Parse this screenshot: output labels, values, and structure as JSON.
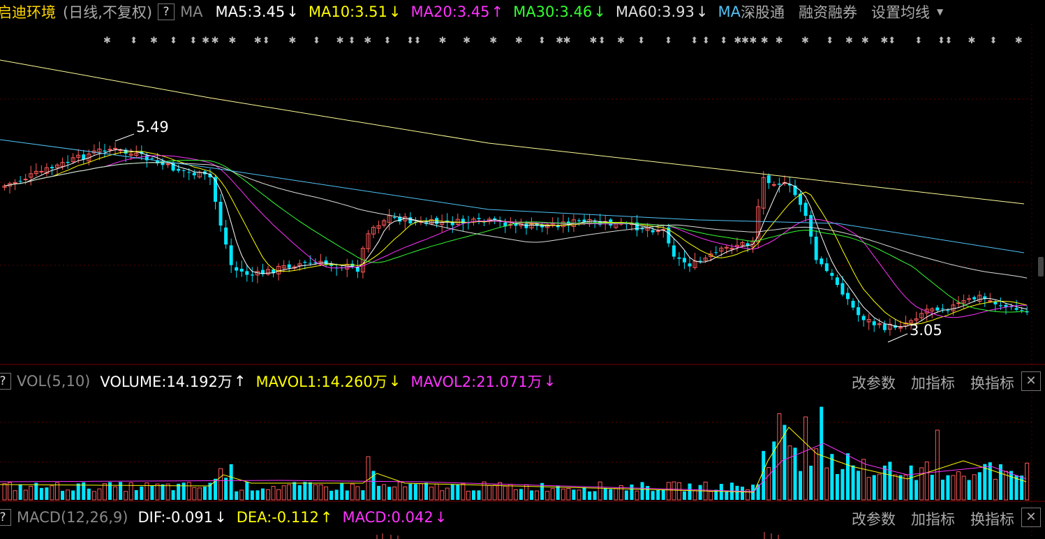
{
  "header": {
    "stock_name": "启迪环境",
    "mode": "(日线,不复权)",
    "help": "?",
    "ma_label": "MA",
    "ma_items": [
      {
        "text": "MA5:3.45",
        "arrow": "↓",
        "color": "#ffffff"
      },
      {
        "text": "MA10:3.51",
        "arrow": "↓",
        "color": "#ffff00"
      },
      {
        "text": "MA20:3.45",
        "arrow": "↑",
        "color": "#ff33ff"
      },
      {
        "text": "MA30:3.46",
        "arrow": "↓",
        "color": "#33ff33"
      },
      {
        "text": "MA60:3.93",
        "arrow": "↓",
        "color": "#dddddd"
      }
    ],
    "ma_link": "MA",
    "links": [
      "深股通",
      "融资融券",
      "设置均线"
    ]
  },
  "price_chart": {
    "high_label": "5.49",
    "low_label": "3.05",
    "colors": {
      "up": "#ff5a5a",
      "down": "#00e5ff",
      "ma5": "#ffffff",
      "ma10": "#ffff00",
      "ma20": "#ff33ff",
      "ma30": "#33ff33",
      "ma60": "#dddddd",
      "ma120": "#4fc3f7",
      "ma250": "#ffff99"
    }
  },
  "volume_panel": {
    "help": "?",
    "title": "VOL(5,10)",
    "items": [
      {
        "text": "VOLUME:14.192万",
        "arrow": "↑",
        "color": "#ffffff"
      },
      {
        "text": "MAVOL1:14.260万",
        "arrow": "↓",
        "color": "#ffff00"
      },
      {
        "text": "MAVOL2:21.071万",
        "arrow": "↓",
        "color": "#ff33ff"
      }
    ],
    "tools": [
      "改参数",
      "加指标",
      "换指标"
    ],
    "close": "✕"
  },
  "macd_panel": {
    "help": "?",
    "title": "MACD(12,26,9)",
    "items": [
      {
        "text": "DIF:-0.091",
        "arrow": "↓",
        "color": "#ffffff"
      },
      {
        "text": "DEA:-0.112",
        "arrow": "↑",
        "color": "#ffff00"
      },
      {
        "text": "MACD:0.042",
        "arrow": "↓",
        "color": "#ff33ff"
      }
    ],
    "tools": [
      "改参数",
      "加指标",
      "换指标"
    ],
    "close": "✕"
  }
}
